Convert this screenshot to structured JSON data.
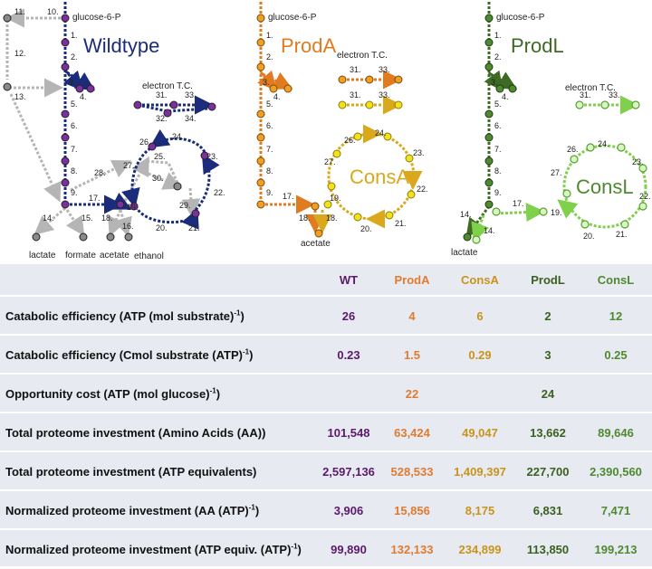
{
  "diagram": {
    "panels": [
      {
        "title": "Wildtype",
        "title_color": "#1a2c7a",
        "node_color": "#7b2fa0",
        "arrow_color": "#1a2c7a"
      },
      {
        "title": "ProdA",
        "title_color": "#e07b20",
        "node_color": "#f0a020",
        "arrow_color": "#e07b20"
      },
      {
        "title": "ProdL",
        "title_color": "#3d6b25",
        "node_color": "#4e8a30",
        "arrow_color": "#3d6b25"
      }
    ],
    "cycle_labels": {
      "consA": "ConsA",
      "consL": "ConsL"
    },
    "metabolites": {
      "g6p": "glucose-6-P",
      "etc": "electron T.C.",
      "lactate": "lactate",
      "formate": "formate",
      "acetate": "acetate",
      "ethanol": "ethanol"
    },
    "reaction_labels": [
      "1.",
      "2.",
      "3.",
      "4.",
      "5.",
      "6.",
      "7.",
      "8.",
      "9.",
      "10.",
      "11.",
      "12.",
      "13.",
      "14.",
      "15.",
      "16.",
      "17.",
      "18.",
      "19.",
      "20.",
      "21.",
      "22.",
      "23.",
      "24.",
      "25.",
      "26.",
      "27.",
      "28.",
      "29.",
      "30.",
      "31.",
      "32.",
      "33.",
      "34."
    ],
    "colors": {
      "grey": "#b5b5b5",
      "grey_node": "#8a8a8a",
      "consA": "#f2e21a",
      "consA_arrow": "#d9a81c",
      "consL": "#7fd04a",
      "consL_node": "#d8f5c5"
    }
  },
  "table": {
    "headers": [
      "WT",
      "ProdA",
      "ConsA",
      "ProdL",
      "ConsL"
    ],
    "header_colors": [
      "#5a1a6b",
      "#e07b30",
      "#c8941c",
      "#3a6020",
      "#4e8a30"
    ],
    "rows": [
      {
        "label": "Catabolic efficiency (ATP (mol substrate)",
        "sup": "-1",
        "tail": ")",
        "values": [
          "26",
          "4",
          "6",
          "2",
          "12"
        ]
      },
      {
        "label": "Catabolic efficiency (Cmol substrate (ATP)",
        "sup": "-1",
        "tail": ")",
        "values": [
          "0.23",
          "1.5",
          "0.29",
          "3",
          "0.25"
        ]
      },
      {
        "label": "Opportunity cost (ATP (mol glucose)",
        "sup": "-1",
        "tail": ")",
        "values": [
          "",
          "22",
          "",
          "24",
          ""
        ]
      },
      {
        "label": "Total proteome investment (Amino Acids (AA))",
        "sup": "",
        "tail": "",
        "values": [
          "101,548",
          "63,424",
          "49,047",
          "13,662",
          "89,646"
        ]
      },
      {
        "label": "Total proteome investment (ATP equivalents)",
        "sup": "",
        "tail": "",
        "values": [
          "2,597,136",
          "528,533",
          "1,409,397",
          "227,700",
          "2,390,560"
        ]
      },
      {
        "label": "Normalized proteome investment (AA (ATP)",
        "sup": "-1",
        "tail": ")",
        "values": [
          "3,906",
          "15,856",
          "8,175",
          "6,831",
          "7,471"
        ]
      },
      {
        "label": "Normalized proteome investment (ATP equiv. (ATP)",
        "sup": "-1",
        "tail": ")",
        "values": [
          "99,890",
          "132,133",
          "234,899",
          "113,850",
          "199,213"
        ]
      }
    ]
  }
}
